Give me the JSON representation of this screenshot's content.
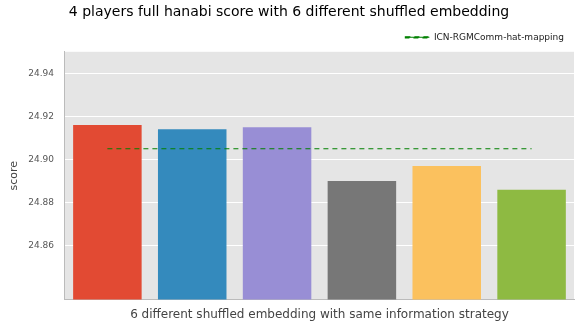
{
  "chart_data": {
    "type": "bar",
    "title": "4 players full hanabi score with 6 different shuffled embedding",
    "x_label": "6 different shuffled embedding with same information strategy",
    "y_label": "score",
    "categories": [
      null,
      null,
      null,
      null,
      null,
      null
    ],
    "series": [
      {
        "type": "bar",
        "colors": [
          "#E24A33",
          "#348ABD",
          "#988ED5",
          "#777777",
          "#FBC15E",
          "#8EBA42"
        ],
        "values": [
          24.916,
          24.914,
          24.915,
          24.89,
          24.897,
          24.886
        ]
      },
      {
        "name": "ICN-RGMComm-hat-mapping",
        "type": "line",
        "line_style": "dashed",
        "color": "#008000",
        "values": [
          24.905,
          24.905,
          24.905,
          24.905,
          24.905,
          24.905
        ]
      }
    ],
    "ylim": [
      24.835,
      24.95
    ],
    "yticks": [
      24.86,
      24.88,
      24.9,
      24.92,
      24.94
    ],
    "grid": true,
    "legend": "upper right",
    "tick_labels": "y"
  }
}
